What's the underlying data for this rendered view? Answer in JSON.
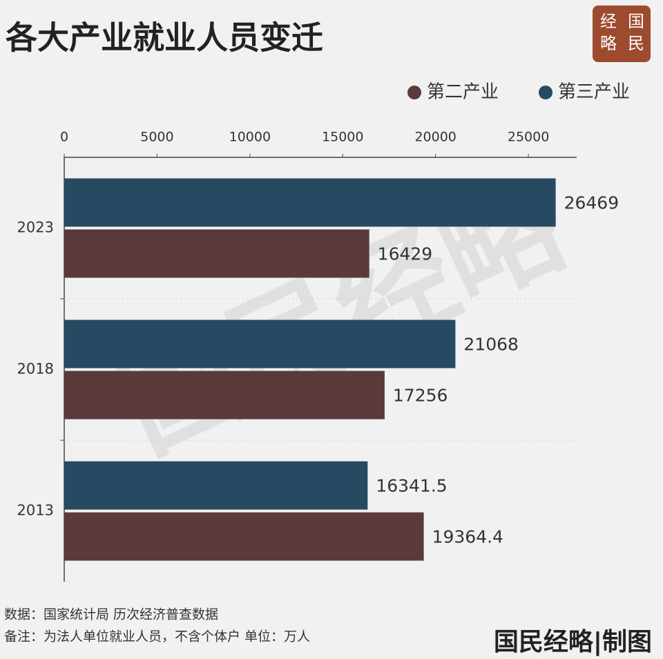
{
  "chart_data": {
    "type": "bar",
    "orientation": "horizontal",
    "title": "各大产业就业人员变迁",
    "logo": [
      "国",
      "民",
      "经",
      "略"
    ],
    "watermark": "国民经略",
    "categories": [
      "2023",
      "2018",
      "2013"
    ],
    "series": [
      {
        "name": "第二产业",
        "color": "#5a3a3a",
        "values": [
          16429,
          17256,
          19364.4
        ]
      },
      {
        "name": "第三产业",
        "color": "#254a62",
        "values": [
          26469,
          21068,
          16341.5
        ]
      }
    ],
    "xlim": [
      0,
      27600
    ],
    "xticks": [
      0,
      5000,
      10000,
      15000,
      20000,
      25000
    ],
    "legend": "top-right",
    "notes": [
      "数据：国家统计局 历次经济普查数据",
      "备注：为法人单位就业人员，不含个体户  单位：万人"
    ],
    "credit": "国民经略|制图"
  }
}
